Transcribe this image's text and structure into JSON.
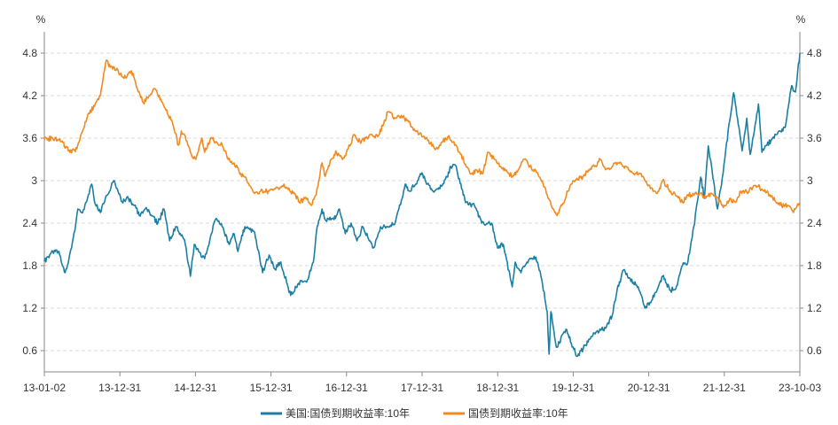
{
  "chart_data": {
    "type": "line",
    "y_unit_left": "%",
    "y_unit_right": "%",
    "ylim": [
      0.3,
      5.1
    ],
    "y_ticks": [
      "0.6",
      "1.2",
      "1.8",
      "2.4",
      "3",
      "3.6",
      "4.2",
      "4.8"
    ],
    "x_tick_labels": [
      "13-01-02",
      "13-12-31",
      "14-12-31",
      "15-12-31",
      "16-12-31",
      "17-12-31",
      "18-12-31",
      "19-12-31",
      "20-12-31",
      "21-12-31",
      "23-10-03"
    ],
    "x_start": "2013-01-02",
    "x_end": "2023-10-03",
    "grid": "horizontal-dashed",
    "legend_position": "bottom",
    "colors": {
      "us": "#1a7fa3",
      "cn": "#f38a1f"
    },
    "series": [
      {
        "name": "美国:国债到期收益率:10年",
        "color": "#1a7fa3",
        "points": [
          [
            "2013-01-02",
            1.86
          ],
          [
            "2013-02-15",
            2.0
          ],
          [
            "2013-03-15",
            2.0
          ],
          [
            "2013-04-20",
            1.7
          ],
          [
            "2013-05-10",
            1.9
          ],
          [
            "2013-06-10",
            2.3
          ],
          [
            "2013-06-25",
            2.6
          ],
          [
            "2013-07-15",
            2.55
          ],
          [
            "2013-08-10",
            2.7
          ],
          [
            "2013-09-05",
            2.95
          ],
          [
            "2013-09-20",
            2.7
          ],
          [
            "2013-10-20",
            2.55
          ],
          [
            "2013-11-15",
            2.75
          ],
          [
            "2013-12-31",
            3.0
          ],
          [
            "2014-01-20",
            2.85
          ],
          [
            "2014-02-10",
            2.7
          ],
          [
            "2014-03-15",
            2.75
          ],
          [
            "2014-04-15",
            2.65
          ],
          [
            "2014-05-15",
            2.5
          ],
          [
            "2014-06-15",
            2.62
          ],
          [
            "2014-07-15",
            2.5
          ],
          [
            "2014-08-15",
            2.4
          ],
          [
            "2014-09-15",
            2.6
          ],
          [
            "2014-10-15",
            2.15
          ],
          [
            "2014-11-15",
            2.35
          ],
          [
            "2014-12-31",
            2.17
          ],
          [
            "2015-01-31",
            1.65
          ],
          [
            "2015-02-20",
            2.1
          ],
          [
            "2015-03-15",
            2.0
          ],
          [
            "2015-04-15",
            1.9
          ],
          [
            "2015-05-20",
            2.25
          ],
          [
            "2015-06-10",
            2.45
          ],
          [
            "2015-07-15",
            2.35
          ],
          [
            "2015-08-20",
            2.1
          ],
          [
            "2015-09-15",
            2.25
          ],
          [
            "2015-10-05",
            2.0
          ],
          [
            "2015-11-10",
            2.35
          ],
          [
            "2015-12-31",
            2.27
          ],
          [
            "2016-02-10",
            1.7
          ],
          [
            "2016-03-15",
            1.95
          ],
          [
            "2016-04-15",
            1.75
          ],
          [
            "2016-05-15",
            1.85
          ],
          [
            "2016-07-05",
            1.38
          ],
          [
            "2016-08-15",
            1.55
          ],
          [
            "2016-09-30",
            1.6
          ],
          [
            "2016-10-31",
            1.85
          ],
          [
            "2016-11-20",
            2.35
          ],
          [
            "2016-12-15",
            2.6
          ],
          [
            "2016-12-31",
            2.45
          ],
          [
            "2017-02-15",
            2.45
          ],
          [
            "2017-03-15",
            2.6
          ],
          [
            "2017-04-15",
            2.25
          ],
          [
            "2017-05-15",
            2.4
          ],
          [
            "2017-06-15",
            2.15
          ],
          [
            "2017-07-15",
            2.35
          ],
          [
            "2017-09-08",
            2.05
          ],
          [
            "2017-10-15",
            2.35
          ],
          [
            "2017-11-15",
            2.35
          ],
          [
            "2017-12-31",
            2.41
          ],
          [
            "2018-01-31",
            2.72
          ],
          [
            "2018-02-20",
            2.95
          ],
          [
            "2018-03-15",
            2.85
          ],
          [
            "2018-04-25",
            3.0
          ],
          [
            "2018-05-18",
            3.11
          ],
          [
            "2018-06-15",
            2.95
          ],
          [
            "2018-07-15",
            2.85
          ],
          [
            "2018-08-15",
            2.9
          ],
          [
            "2018-09-25",
            3.05
          ],
          [
            "2018-10-15",
            3.2
          ],
          [
            "2018-11-08",
            3.22
          ],
          [
            "2018-12-31",
            2.69
          ],
          [
            "2019-02-15",
            2.65
          ],
          [
            "2019-03-25",
            2.4
          ],
          [
            "2019-05-15",
            2.4
          ],
          [
            "2019-06-15",
            2.05
          ],
          [
            "2019-07-15",
            2.1
          ],
          [
            "2019-08-30",
            1.5
          ],
          [
            "2019-09-15",
            1.85
          ],
          [
            "2019-10-15",
            1.7
          ],
          [
            "2019-11-15",
            1.85
          ],
          [
            "2019-12-31",
            1.92
          ],
          [
            "2020-01-31",
            1.6
          ],
          [
            "2020-02-28",
            1.15
          ],
          [
            "2020-03-09",
            0.55
          ],
          [
            "2020-03-18",
            1.15
          ],
          [
            "2020-04-15",
            0.65
          ],
          [
            "2020-06-08",
            0.9
          ],
          [
            "2020-07-15",
            0.62
          ],
          [
            "2020-08-04",
            0.52
          ],
          [
            "2020-09-15",
            0.68
          ],
          [
            "2020-10-30",
            0.85
          ],
          [
            "2020-12-31",
            0.93
          ],
          [
            "2021-01-31",
            1.1
          ],
          [
            "2021-02-25",
            1.45
          ],
          [
            "2021-03-31",
            1.74
          ],
          [
            "2021-04-30",
            1.63
          ],
          [
            "2021-06-15",
            1.5
          ],
          [
            "2021-07-20",
            1.2
          ],
          [
            "2021-08-15",
            1.28
          ],
          [
            "2021-09-30",
            1.52
          ],
          [
            "2021-10-20",
            1.65
          ],
          [
            "2021-11-30",
            1.45
          ],
          [
            "2021-12-31",
            1.51
          ],
          [
            "2022-01-31",
            1.8
          ],
          [
            "2022-02-28",
            1.85
          ],
          [
            "2022-03-31",
            2.35
          ],
          [
            "2022-05-06",
            3.05
          ],
          [
            "2022-05-25",
            2.75
          ],
          [
            "2022-06-14",
            3.49
          ],
          [
            "2022-08-01",
            2.6
          ],
          [
            "2022-08-30",
            3.1
          ],
          [
            "2022-09-30",
            3.8
          ],
          [
            "2022-10-24",
            4.24
          ],
          [
            "2022-12-07",
            3.42
          ],
          [
            "2022-12-31",
            3.88
          ],
          [
            "2023-01-18",
            3.37
          ],
          [
            "2023-03-02",
            4.08
          ],
          [
            "2023-03-20",
            3.4
          ],
          [
            "2023-04-15",
            3.5
          ],
          [
            "2023-05-31",
            3.65
          ],
          [
            "2023-07-19",
            3.75
          ],
          [
            "2023-08-21",
            4.34
          ],
          [
            "2023-09-10",
            4.25
          ],
          [
            "2023-10-03",
            4.8
          ]
        ]
      },
      {
        "name": "国债到期收益率:10年",
        "color": "#f38a1f",
        "points": [
          [
            "2013-01-02",
            3.58
          ],
          [
            "2013-02-15",
            3.6
          ],
          [
            "2013-03-31",
            3.55
          ],
          [
            "2013-05-15",
            3.4
          ],
          [
            "2013-06-20",
            3.45
          ],
          [
            "2013-07-20",
            3.7
          ],
          [
            "2013-08-20",
            3.95
          ],
          [
            "2013-09-20",
            4.05
          ],
          [
            "2013-10-20",
            4.2
          ],
          [
            "2013-11-20",
            4.7
          ],
          [
            "2013-12-10",
            4.6
          ],
          [
            "2013-12-31",
            4.6
          ],
          [
            "2014-01-31",
            4.5
          ],
          [
            "2014-02-28",
            4.45
          ],
          [
            "2014-03-31",
            4.55
          ],
          [
            "2014-04-30",
            4.3
          ],
          [
            "2014-05-31",
            4.1
          ],
          [
            "2014-06-30",
            4.2
          ],
          [
            "2014-07-31",
            4.3
          ],
          [
            "2014-08-31",
            4.15
          ],
          [
            "2014-09-30",
            4.0
          ],
          [
            "2014-10-31",
            3.8
          ],
          [
            "2014-11-30",
            3.5
          ],
          [
            "2014-12-15",
            3.7
          ],
          [
            "2014-12-31",
            3.65
          ],
          [
            "2015-01-31",
            3.4
          ],
          [
            "2015-02-28",
            3.3
          ],
          [
            "2015-03-31",
            3.6
          ],
          [
            "2015-04-15",
            3.4
          ],
          [
            "2015-05-15",
            3.6
          ],
          [
            "2015-06-15",
            3.55
          ],
          [
            "2015-07-15",
            3.5
          ],
          [
            "2015-08-15",
            3.3
          ],
          [
            "2015-09-15",
            3.25
          ],
          [
            "2015-10-20",
            3.1
          ],
          [
            "2015-11-20",
            3.0
          ],
          [
            "2015-12-31",
            2.82
          ],
          [
            "2016-01-31",
            2.85
          ],
          [
            "2016-03-15",
            2.85
          ],
          [
            "2016-04-30",
            2.9
          ],
          [
            "2016-05-31",
            2.95
          ],
          [
            "2016-06-30",
            2.85
          ],
          [
            "2016-07-31",
            2.8
          ],
          [
            "2016-08-15",
            2.7
          ],
          [
            "2016-09-30",
            2.75
          ],
          [
            "2016-10-21",
            2.65
          ],
          [
            "2016-11-15",
            2.8
          ],
          [
            "2016-12-15",
            3.25
          ],
          [
            "2016-12-31",
            3.06
          ],
          [
            "2017-01-31",
            3.3
          ],
          [
            "2017-02-28",
            3.4
          ],
          [
            "2017-03-31",
            3.3
          ],
          [
            "2017-04-30",
            3.45
          ],
          [
            "2017-05-31",
            3.65
          ],
          [
            "2017-06-30",
            3.55
          ],
          [
            "2017-07-31",
            3.6
          ],
          [
            "2017-08-31",
            3.65
          ],
          [
            "2017-09-30",
            3.62
          ],
          [
            "2017-10-31",
            3.8
          ],
          [
            "2017-11-22",
            3.97
          ],
          [
            "2017-12-31",
            3.88
          ],
          [
            "2018-01-31",
            3.92
          ],
          [
            "2018-02-28",
            3.85
          ],
          [
            "2018-03-31",
            3.75
          ],
          [
            "2018-04-30",
            3.65
          ],
          [
            "2018-05-31",
            3.62
          ],
          [
            "2018-06-30",
            3.52
          ],
          [
            "2018-07-31",
            3.45
          ],
          [
            "2018-08-31",
            3.55
          ],
          [
            "2018-09-30",
            3.62
          ],
          [
            "2018-10-31",
            3.55
          ],
          [
            "2018-11-30",
            3.4
          ],
          [
            "2018-12-31",
            3.23
          ],
          [
            "2019-01-31",
            3.1
          ],
          [
            "2019-02-28",
            3.15
          ],
          [
            "2019-03-31",
            3.1
          ],
          [
            "2019-04-24",
            3.4
          ],
          [
            "2019-05-31",
            3.3
          ],
          [
            "2019-06-30",
            3.2
          ],
          [
            "2019-07-31",
            3.15
          ],
          [
            "2019-08-31",
            3.05
          ],
          [
            "2019-09-30",
            3.15
          ],
          [
            "2019-10-31",
            3.3
          ],
          [
            "2019-11-30",
            3.2
          ],
          [
            "2019-12-31",
            3.14
          ],
          [
            "2020-01-20",
            3.05
          ],
          [
            "2020-02-28",
            2.8
          ],
          [
            "2020-03-31",
            2.6
          ],
          [
            "2020-04-15",
            2.52
          ],
          [
            "2020-05-15",
            2.65
          ],
          [
            "2020-06-15",
            2.85
          ],
          [
            "2020-07-15",
            3.0
          ],
          [
            "2020-08-31",
            3.05
          ],
          [
            "2020-09-30",
            3.15
          ],
          [
            "2020-10-31",
            3.2
          ],
          [
            "2020-11-30",
            3.3
          ],
          [
            "2020-12-31",
            3.16
          ],
          [
            "2021-01-31",
            3.2
          ],
          [
            "2021-02-28",
            3.25
          ],
          [
            "2021-03-31",
            3.2
          ],
          [
            "2021-04-30",
            3.15
          ],
          [
            "2021-05-31",
            3.1
          ],
          [
            "2021-06-30",
            3.1
          ],
          [
            "2021-07-31",
            2.95
          ],
          [
            "2021-08-31",
            2.85
          ],
          [
            "2021-09-30",
            2.85
          ],
          [
            "2021-10-20",
            3.0
          ],
          [
            "2021-11-30",
            2.85
          ],
          [
            "2021-12-31",
            2.78
          ],
          [
            "2022-01-31",
            2.7
          ],
          [
            "2022-02-28",
            2.8
          ],
          [
            "2022-03-31",
            2.8
          ],
          [
            "2022-04-30",
            2.82
          ],
          [
            "2022-05-31",
            2.75
          ],
          [
            "2022-06-30",
            2.82
          ],
          [
            "2022-07-31",
            2.76
          ],
          [
            "2022-08-31",
            2.62
          ],
          [
            "2022-09-30",
            2.72
          ],
          [
            "2022-10-31",
            2.7
          ],
          [
            "2022-11-30",
            2.85
          ],
          [
            "2022-12-31",
            2.84
          ],
          [
            "2023-01-31",
            2.9
          ],
          [
            "2023-02-28",
            2.92
          ],
          [
            "2023-03-31",
            2.85
          ],
          [
            "2023-04-30",
            2.8
          ],
          [
            "2023-05-31",
            2.7
          ],
          [
            "2023-06-30",
            2.65
          ],
          [
            "2023-07-31",
            2.65
          ],
          [
            "2023-08-31",
            2.55
          ],
          [
            "2023-09-30",
            2.68
          ],
          [
            "2023-10-03",
            2.68
          ]
        ]
      }
    ]
  }
}
